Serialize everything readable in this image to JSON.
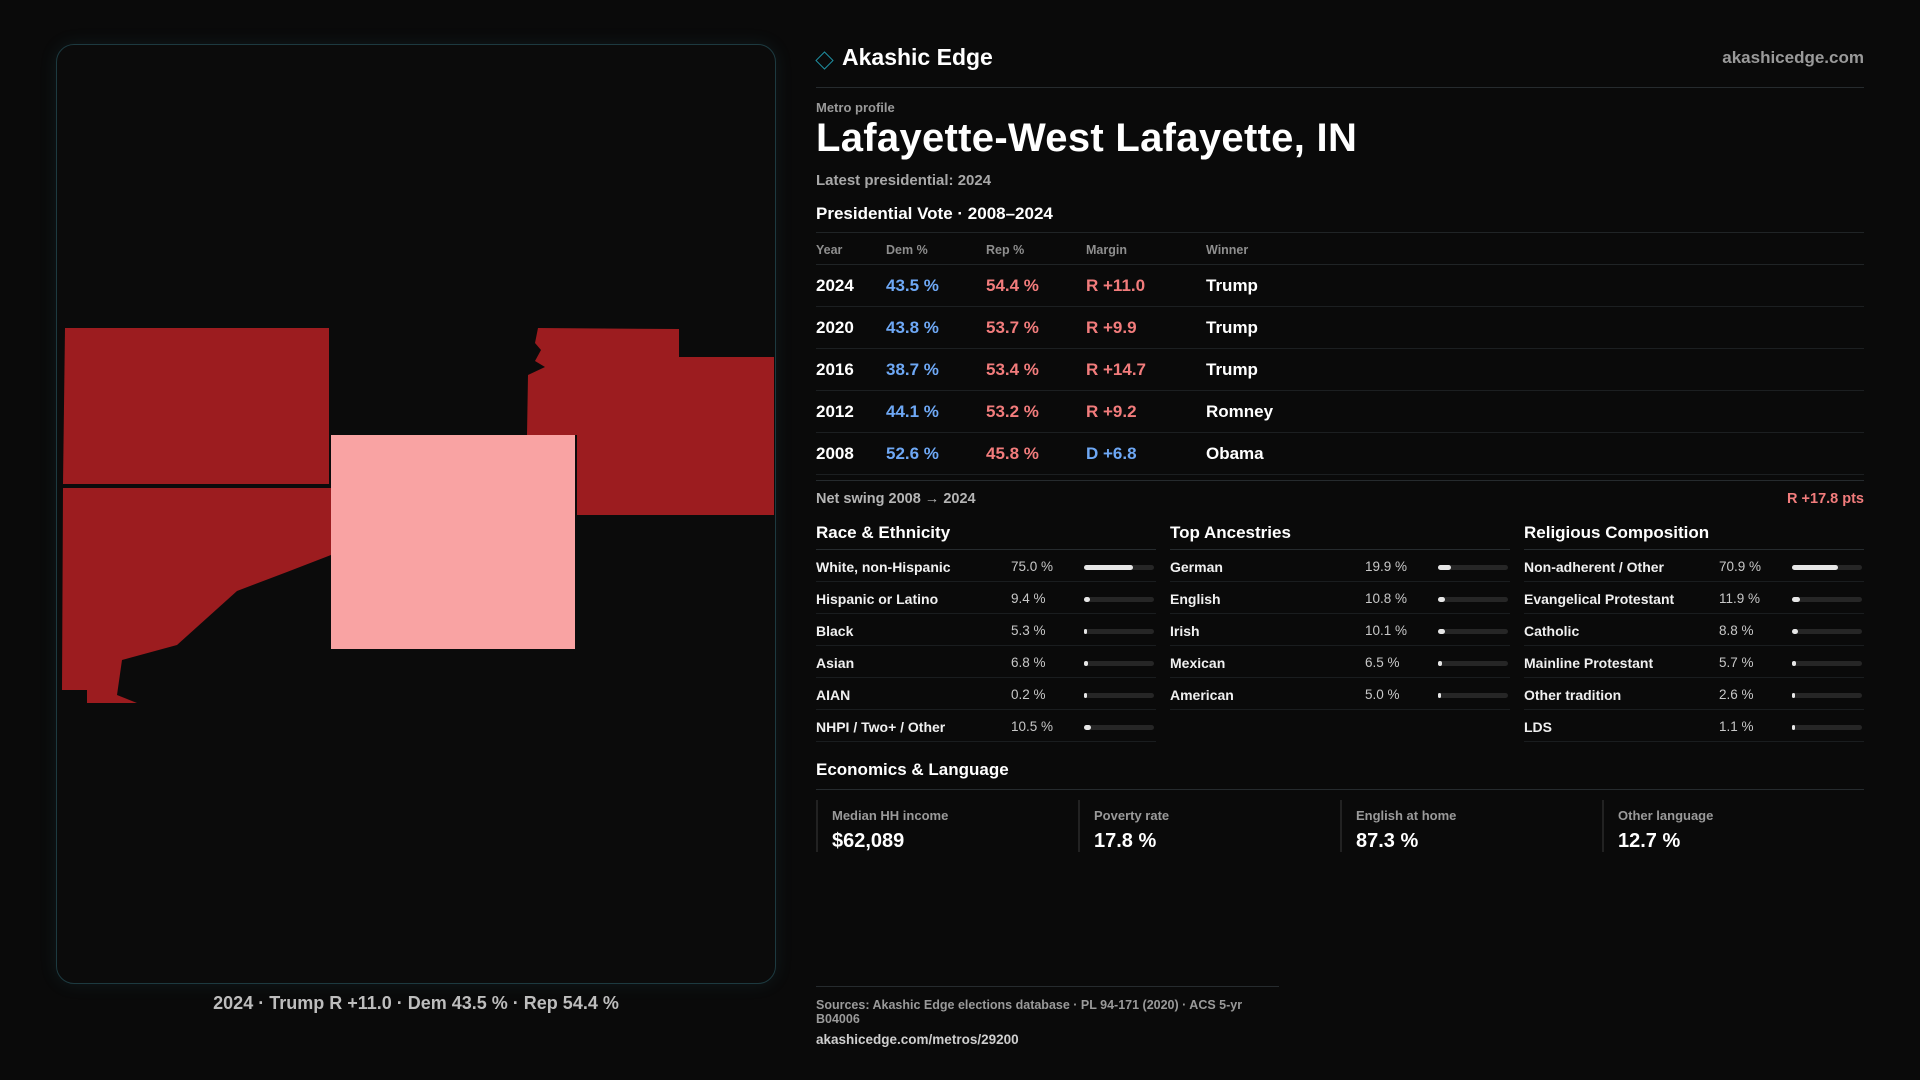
{
  "brand": {
    "name": "Akashic Edge",
    "url": "akashicedge.com"
  },
  "profile": {
    "kicker": "Metro profile",
    "title": "Lafayette-West Lafayette, IN",
    "latest": "Latest presidential: 2024"
  },
  "map": {
    "caption": "2024 · Trump R +11.0 · Dem 43.5 % · Rep 54.4 %",
    "colors": {
      "strong_rep": "#9c1c1f",
      "lean_rep": "#f9a3a3"
    }
  },
  "vote": {
    "title": "Presidential Vote · 2008–2024",
    "headers": {
      "year": "Year",
      "dem": "Dem %",
      "rep": "Rep %",
      "margin": "Margin",
      "winner": "Winner"
    },
    "rows": [
      {
        "year": "2024",
        "dem": "43.5 %",
        "rep": "54.4 %",
        "margin": "R +11.0",
        "party": "R",
        "winner": "Trump"
      },
      {
        "year": "2020",
        "dem": "43.8 %",
        "rep": "53.7 %",
        "margin": "R +9.9",
        "party": "R",
        "winner": "Trump"
      },
      {
        "year": "2016",
        "dem": "38.7 %",
        "rep": "53.4 %",
        "margin": "R +14.7",
        "party": "R",
        "winner": "Trump"
      },
      {
        "year": "2012",
        "dem": "44.1 %",
        "rep": "53.2 %",
        "margin": "R +9.2",
        "party": "R",
        "winner": "Romney"
      },
      {
        "year": "2008",
        "dem": "52.6 %",
        "rep": "45.8 %",
        "margin": "D +6.8",
        "party": "D",
        "winner": "Obama"
      }
    ],
    "swing_label": "Net swing 2008 → 2024",
    "swing_value": "R +17.8 pts"
  },
  "race": {
    "title": "Race & Ethnicity",
    "rows": [
      {
        "label": "White, non-Hispanic",
        "value": "75.0 %",
        "pct": 75.0
      },
      {
        "label": "Hispanic or Latino",
        "value": "9.4 %",
        "pct": 9.4
      },
      {
        "label": "Black",
        "value": "5.3 %",
        "pct": 5.3
      },
      {
        "label": "Asian",
        "value": "6.8 %",
        "pct": 6.8
      },
      {
        "label": "AIAN",
        "value": "0.2 %",
        "pct": 0.2
      },
      {
        "label": "NHPI / Two+ / Other",
        "value": "10.5 %",
        "pct": 10.5
      }
    ]
  },
  "ancestry": {
    "title": "Top Ancestries",
    "rows": [
      {
        "label": "German",
        "value": "19.9 %",
        "pct": 19.9
      },
      {
        "label": "English",
        "value": "10.8 %",
        "pct": 10.8
      },
      {
        "label": "Irish",
        "value": "10.1 %",
        "pct": 10.1
      },
      {
        "label": "Mexican",
        "value": "6.5 %",
        "pct": 6.5
      },
      {
        "label": "American",
        "value": "5.0 %",
        "pct": 5.0
      }
    ]
  },
  "religion": {
    "title": "Religious Composition",
    "rows": [
      {
        "label": "Non-adherent / Other",
        "value": "70.9 %",
        "pct": 70.9
      },
      {
        "label": "Evangelical Protestant",
        "value": "11.9 %",
        "pct": 11.9
      },
      {
        "label": "Catholic",
        "value": "8.8 %",
        "pct": 8.8
      },
      {
        "label": "Mainline Protestant",
        "value": "5.7 %",
        "pct": 5.7
      },
      {
        "label": "Other tradition",
        "value": "2.6 %",
        "pct": 2.6
      },
      {
        "label": "LDS",
        "value": "1.1 %",
        "pct": 1.1
      }
    ]
  },
  "economics": {
    "title": "Economics & Language",
    "cards": [
      {
        "label": "Median HH income",
        "value": "$62,089"
      },
      {
        "label": "Poverty rate",
        "value": "17.8 %"
      },
      {
        "label": "English at home",
        "value": "87.3 %"
      },
      {
        "label": "Other language",
        "value": "12.7 %"
      }
    ]
  },
  "sources": {
    "line1": "Sources: Akashic Edge elections database · PL 94-171 (2020) · ACS 5-yr B04006",
    "line2": "akashicedge.com/metros/29200"
  }
}
